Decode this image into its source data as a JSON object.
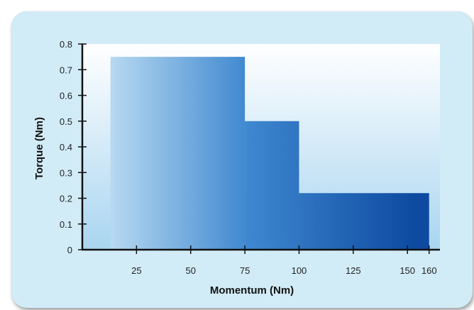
{
  "chart_data": {
    "type": "bar",
    "title": "",
    "xlabel": "Momentum (Nm)",
    "ylabel": "Torque (Nm)",
    "xlim": [
      0,
      165
    ],
    "ylim": [
      0,
      0.8
    ],
    "x_ticks": [
      25,
      50,
      75,
      100,
      125,
      150,
      160
    ],
    "y_ticks": [
      "0",
      "0.1",
      "0.2",
      "0.3",
      "0.4",
      "0.5",
      "0.6",
      "0.7",
      "0.8"
    ],
    "steps": [
      {
        "x_start": 13,
        "x_end": 75,
        "value": 0.75
      },
      {
        "x_start": 75,
        "x_end": 100,
        "value": 0.5
      },
      {
        "x_start": 100,
        "x_end": 160,
        "value": 0.22
      }
    ],
    "grid": false,
    "colors": {
      "card_background": "#d2ecf7",
      "fill_light": "#b9daf1",
      "fill_mid": "#3f88d0",
      "fill_dark": "#0d4aa0",
      "axis": "#111111"
    }
  }
}
